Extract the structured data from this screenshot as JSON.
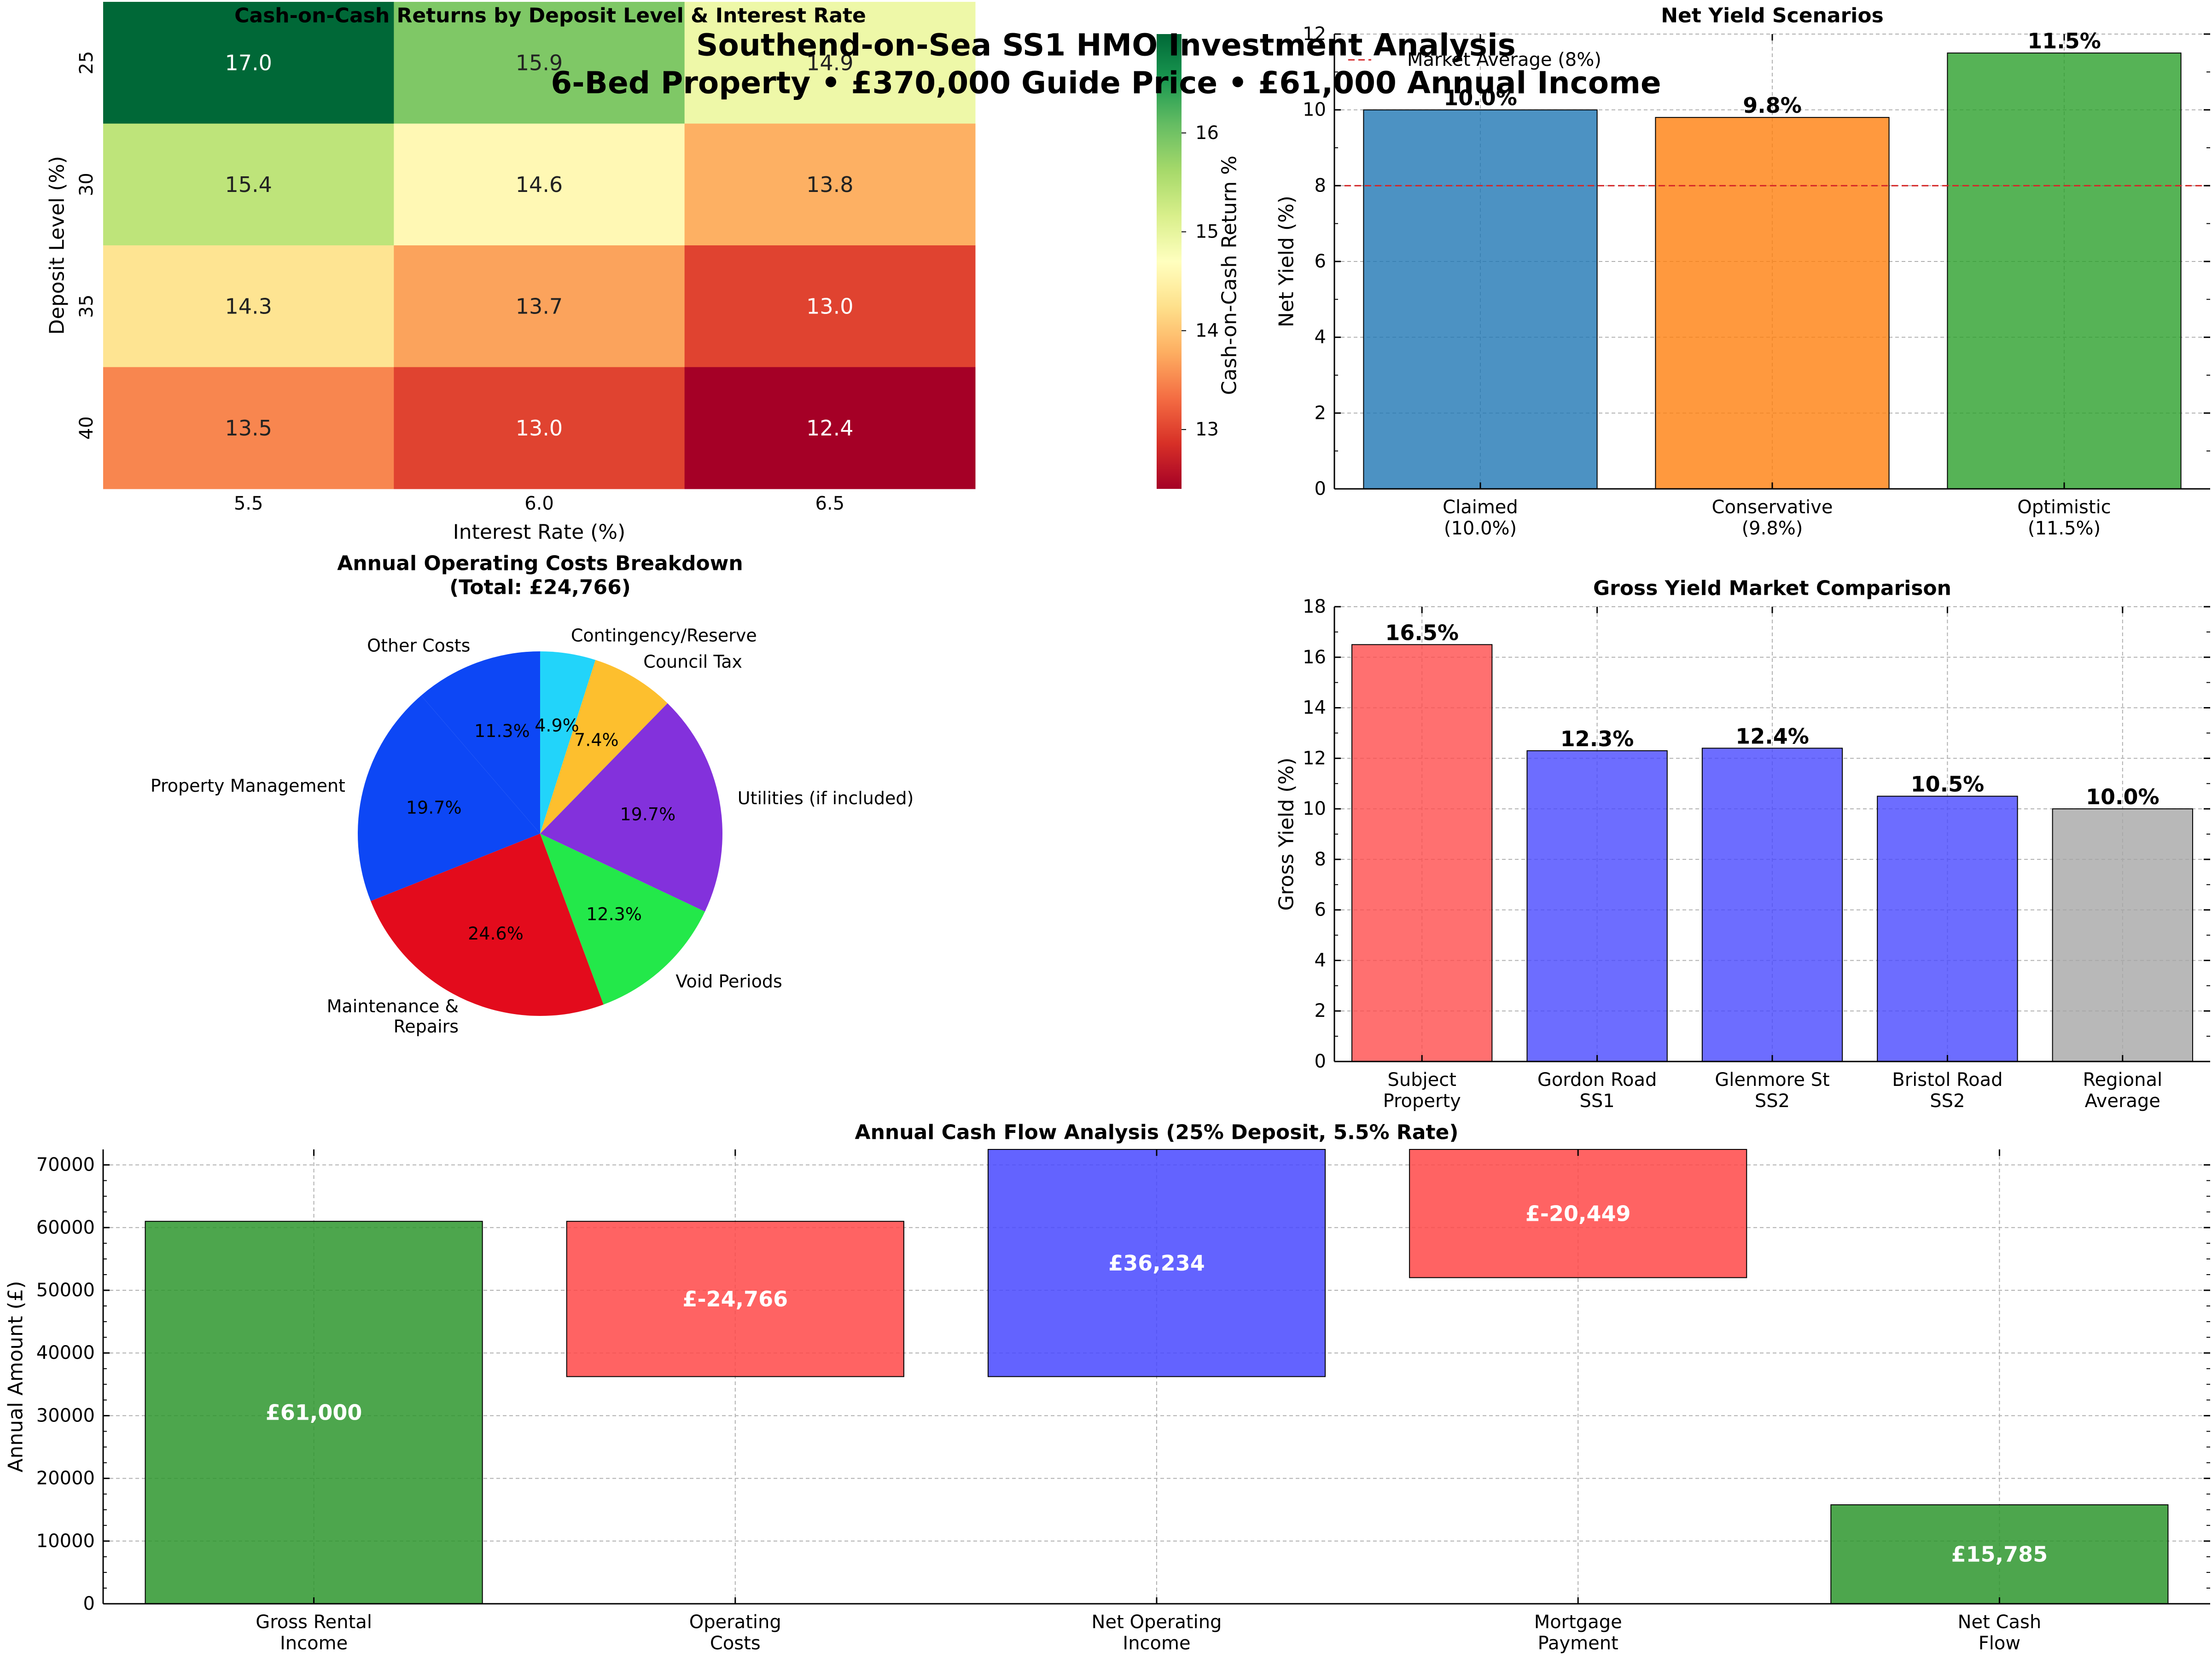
{
  "suptitle": {
    "line1": "Southend-on-Sea SS1 HMO Investment Analysis",
    "line2": "6-Bed Property • £370,000 Guide Price • £61,000 Annual Income"
  },
  "chart_data": [
    {
      "id": "heatmap",
      "type": "heatmap",
      "title": "Cash-on-Cash Returns by Deposit Level & Interest Rate",
      "xlabel": "Interest Rate (%)",
      "ylabel": "Deposit Level (%)",
      "x_categories": [
        "5.5",
        "6.0",
        "6.5"
      ],
      "y_categories": [
        "25",
        "30",
        "35",
        "40"
      ],
      "values": [
        [
          17.0,
          15.9,
          14.9
        ],
        [
          15.4,
          14.6,
          13.8
        ],
        [
          14.3,
          13.7,
          13.0
        ],
        [
          13.5,
          13.0,
          12.4
        ]
      ],
      "colormap": "RdYlGn",
      "vmin": 12.4,
      "vmax": 17.0,
      "colorbar": {
        "label": "Cash-on-Cash Return %",
        "ticks": [
          "13",
          "14",
          "15",
          "16"
        ]
      }
    },
    {
      "id": "net_yield",
      "type": "bar",
      "title": "Net Yield Scenarios",
      "ylabel": "Net Yield (%)",
      "categories": [
        [
          "Claimed",
          "(10.0%)"
        ],
        [
          "Conservative",
          "(9.8%)"
        ],
        [
          "Optimistic",
          "(11.5%)"
        ]
      ],
      "values": [
        10.0,
        9.8,
        11.5
      ],
      "value_labels": [
        "10.0%",
        "9.8%",
        "11.5%"
      ],
      "colors": [
        "#1f77b4",
        "#ff7f0e",
        "#2ca02c"
      ],
      "ylim": [
        0,
        12
      ],
      "yticks": [
        "0",
        "2",
        "4",
        "6",
        "8",
        "10",
        "12"
      ],
      "reference_line": {
        "value": 8,
        "label": "Market Average (8%)",
        "color": "#d62728"
      },
      "legend": "upper-left",
      "grid": true
    },
    {
      "id": "costs",
      "type": "pie",
      "title": "Annual Operating Costs Breakdown",
      "subtitle": "(Total: £24,766)",
      "slices": [
        {
          "label": "Other Costs",
          "value": 11.3,
          "pct": "11.3%",
          "color": "#0d47f5"
        },
        {
          "label": "Property Management",
          "value": 19.7,
          "pct": "19.7%",
          "color": "#0d47f5"
        },
        {
          "label": [
            "Maintenance &",
            "Repairs"
          ],
          "value": 24.6,
          "pct": "24.6%",
          "color": "#e30b1c"
        },
        {
          "label": "Void Periods",
          "value": 12.3,
          "pct": "12.3%",
          "color": "#23e84a"
        },
        {
          "label": "Utilities (if included)",
          "value": 19.7,
          "pct": "19.7%",
          "color": "#8331dc"
        },
        {
          "label": "Council Tax",
          "value": 7.4,
          "pct": "7.4%",
          "color": "#fdbf2e"
        },
        {
          "label": "Contingency/Reserve",
          "value": 4.9,
          "pct": "4.9%",
          "color": "#22d4fa"
        }
      ]
    },
    {
      "id": "gross_yield",
      "type": "bar",
      "title": "Gross Yield Market Comparison",
      "ylabel": "Gross Yield (%)",
      "categories": [
        [
          "Subject",
          "Property"
        ],
        [
          "Gordon Road",
          "SS1"
        ],
        [
          "Glenmore St",
          "SS2"
        ],
        [
          "Bristol Road",
          "SS2"
        ],
        [
          "Regional",
          "Average"
        ]
      ],
      "values": [
        16.5,
        12.3,
        12.4,
        10.5,
        10.0
      ],
      "value_labels": [
        "16.5%",
        "12.3%",
        "12.4%",
        "10.5%",
        "10.0%"
      ],
      "colors": [
        "#ff4c4c",
        "#4848ff",
        "#4848ff",
        "#4848ff",
        "#a6a6a6"
      ],
      "ylim": [
        0,
        18
      ],
      "yticks": [
        "0",
        "2",
        "4",
        "6",
        "8",
        "10",
        "12",
        "14",
        "16",
        "18"
      ],
      "grid": true
    },
    {
      "id": "cashflow",
      "type": "bar",
      "title": "Annual Cash Flow Analysis (25% Deposit, 5.5% Rate)",
      "ylabel": "Annual Amount (£)",
      "categories": [
        [
          "Gross Rental",
          "Income"
        ],
        [
          "Operating",
          "Costs"
        ],
        [
          "Net Operating",
          "Income"
        ],
        [
          "Mortgage",
          "Payment"
        ],
        [
          "Net Cash",
          "Flow"
        ]
      ],
      "values": [
        61000,
        -24766,
        36234,
        -20449,
        15785
      ],
      "bar_ranges": [
        [
          0,
          61000
        ],
        [
          36234,
          61000
        ],
        [
          36234,
          72468
        ],
        [
          52019,
          72468
        ],
        [
          0,
          15785
        ]
      ],
      "value_labels": [
        "£61,000",
        "£-24,766",
        "£36,234",
        "£-20,449",
        "£15,785"
      ],
      "colors": [
        "#2e962e",
        "#ff4848",
        "#4848ff",
        "#ff4848",
        "#2e962e"
      ],
      "ylim": [
        0,
        72468
      ],
      "yticks": [
        "0",
        "10000",
        "20000",
        "30000",
        "40000",
        "50000",
        "60000",
        "70000"
      ],
      "grid": true
    }
  ]
}
